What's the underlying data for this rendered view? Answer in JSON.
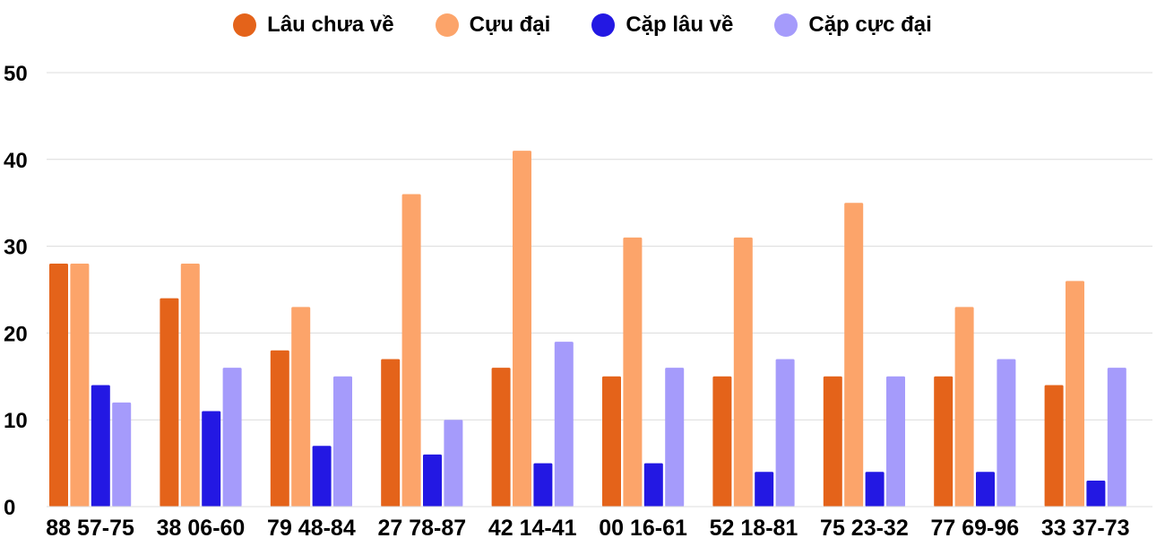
{
  "chart_data": {
    "type": "bar",
    "categories": [
      "88 57-75",
      "38 06-60",
      "79 48-84",
      "27 78-87",
      "42 14-41",
      "00 16-61",
      "52 18-81",
      "75 23-32",
      "77 69-96",
      "33 37-73"
    ],
    "series": [
      {
        "name": "Lâu chưa về",
        "color": "#e4631a",
        "values": [
          28,
          24,
          18,
          17,
          16,
          15,
          15,
          15,
          15,
          14
        ]
      },
      {
        "name": "Cựu đại",
        "color": "#fca46a",
        "values": [
          28,
          28,
          23,
          36,
          41,
          31,
          31,
          35,
          23,
          26
        ]
      },
      {
        "name": "Cặp lâu về",
        "color": "#2318e3",
        "values": [
          14,
          11,
          7,
          6,
          5,
          5,
          4,
          4,
          4,
          3
        ]
      },
      {
        "name": "Cặp cực đại",
        "color": "#a59bfb",
        "values": [
          12,
          16,
          15,
          10,
          19,
          16,
          17,
          15,
          17,
          16
        ]
      }
    ],
    "ylim": [
      0,
      50
    ],
    "yticks": [
      0,
      10,
      20,
      30,
      40,
      50
    ],
    "grid": true,
    "legend": "top-center",
    "title": "",
    "xlabel": "",
    "ylabel": ""
  }
}
